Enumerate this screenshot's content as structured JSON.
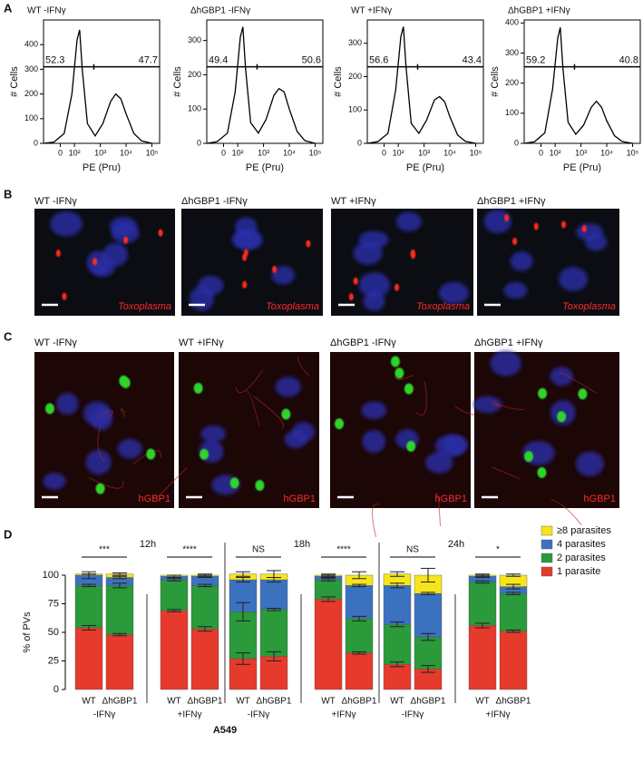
{
  "panel_labels": [
    "A",
    "B",
    "C",
    "D"
  ],
  "chart_data": [
    {
      "type": "line",
      "title": "WT -IFNγ",
      "xlabel": "PE (Pru)",
      "ylabel": "# Cells",
      "color": "#000000",
      "x": [
        0.8,
        1.2,
        1.6,
        1.9,
        2.1,
        2.2,
        2.3,
        2.5,
        2.8,
        3.1,
        3.4,
        3.6,
        3.8,
        4.0,
        4.3,
        4.6,
        5.0
      ],
      "values": [
        0,
        5,
        40,
        200,
        420,
        460,
        300,
        80,
        30,
        80,
        170,
        200,
        180,
        120,
        40,
        10,
        0
      ],
      "xlim": [
        0.8,
        5.3
      ],
      "xticks": [
        {
          "value": 1.45,
          "label": "0"
        },
        {
          "value": 2,
          "label": "10²"
        },
        {
          "value": 3,
          "label": "10³"
        },
        {
          "value": 4,
          "label": "10⁴"
        },
        {
          "value": 5,
          "label": "10⁵"
        }
      ],
      "ylim": [
        0,
        500
      ],
      "yticks": [
        0,
        100,
        200,
        300,
        400
      ],
      "annotations": [
        52.3,
        47.7
      ]
    },
    {
      "type": "line",
      "title": "ΔhGBP1 -IFNγ",
      "xlabel": "PE (Pru)",
      "ylabel": "# Cells",
      "color": "#000000",
      "x": [
        0.8,
        1.2,
        1.6,
        1.9,
        2.1,
        2.2,
        2.3,
        2.5,
        2.8,
        3.1,
        3.4,
        3.6,
        3.8,
        4.0,
        4.3,
        4.6,
        5.0
      ],
      "values": [
        0,
        5,
        30,
        150,
        310,
        340,
        220,
        60,
        30,
        70,
        140,
        160,
        150,
        100,
        35,
        8,
        0
      ],
      "xlim": [
        0.8,
        5.3
      ],
      "xticks": [
        {
          "value": 1.45,
          "label": "0"
        },
        {
          "value": 2,
          "label": "10²"
        },
        {
          "value": 3,
          "label": "10³"
        },
        {
          "value": 4,
          "label": "10⁴"
        },
        {
          "value": 5,
          "label": "10⁵"
        }
      ],
      "ylim": [
        0,
        360
      ],
      "yticks": [
        0,
        100,
        200,
        300
      ],
      "annotations": [
        49.4,
        50.6
      ]
    },
    {
      "type": "line",
      "title": "WT +IFNγ",
      "xlabel": "PE (Pru)",
      "ylabel": "# Cells",
      "color": "#000000",
      "x": [
        0.8,
        1.2,
        1.6,
        1.9,
        2.1,
        2.2,
        2.3,
        2.5,
        2.8,
        3.1,
        3.4,
        3.6,
        3.8,
        4.0,
        4.3,
        4.6,
        5.0
      ],
      "values": [
        0,
        5,
        30,
        160,
        320,
        350,
        230,
        60,
        30,
        70,
        130,
        140,
        125,
        80,
        25,
        6,
        0
      ],
      "xlim": [
        0.8,
        5.3
      ],
      "xticks": [
        {
          "value": 1.45,
          "label": "0"
        },
        {
          "value": 2,
          "label": "10²"
        },
        {
          "value": 3,
          "label": "10³"
        },
        {
          "value": 4,
          "label": "10⁴"
        },
        {
          "value": 5,
          "label": "10⁵"
        }
      ],
      "ylim": [
        0,
        370
      ],
      "yticks": [
        0,
        100,
        200,
        300
      ],
      "annotations": [
        56.6,
        43.4
      ]
    },
    {
      "type": "line",
      "title": "ΔhGBP1 +IFNγ",
      "xlabel": "PE (Pru)",
      "ylabel": "# Cells",
      "color": "#000000",
      "x": [
        0.8,
        1.2,
        1.6,
        1.9,
        2.1,
        2.2,
        2.3,
        2.5,
        2.8,
        3.1,
        3.4,
        3.6,
        3.8,
        4.0,
        4.3,
        4.6,
        5.0
      ],
      "values": [
        0,
        5,
        35,
        180,
        350,
        385,
        250,
        70,
        30,
        60,
        120,
        140,
        120,
        75,
        25,
        6,
        0
      ],
      "xlim": [
        0.8,
        5.3
      ],
      "xticks": [
        {
          "value": 1.45,
          "label": "0"
        },
        {
          "value": 2,
          "label": "10²"
        },
        {
          "value": 3,
          "label": "10³"
        },
        {
          "value": 4,
          "label": "10⁴"
        },
        {
          "value": 5,
          "label": "10⁵"
        }
      ],
      "ylim": [
        0,
        410
      ],
      "yticks": [
        0,
        100,
        200,
        300,
        400
      ],
      "annotations": [
        59.2,
        40.8
      ]
    },
    {
      "type": "stacked-bar",
      "ylabel": "% of PVs",
      "xlabel": "A549",
      "categories": [
        "WT",
        "ΔhGBP1",
        "WT",
        "ΔhGBP1",
        "WT",
        "ΔhGBP1",
        "WT",
        "ΔhGBP1",
        "WT",
        "ΔhGBP1",
        "WT",
        "ΔhGBP1"
      ],
      "groups": [
        "-IFNγ",
        "+IFNγ",
        "-IFNγ",
        "+IFNγ",
        "-IFNγ",
        "+IFNγ"
      ],
      "time_labels": [
        "12h",
        "18h",
        "24h"
      ],
      "significance": [
        "***",
        "****",
        "NS",
        "****",
        "NS",
        "*"
      ],
      "ylim": [
        0,
        110
      ],
      "yticks": [
        0,
        25,
        50,
        75,
        100
      ],
      "series": [
        {
          "name": "1 parasite",
          "color": "#e63a2c",
          "values": [
            54,
            48,
            69,
            53,
            27,
            29,
            79,
            32,
            22,
            18,
            56,
            51
          ],
          "errors": [
            2,
            1,
            1,
            2,
            5,
            4,
            2,
            1,
            2,
            3,
            2,
            1
          ]
        },
        {
          "name": "2 parasites",
          "color": "#2a9a3a",
          "values": [
            37,
            43,
            27,
            38,
            41,
            41,
            17,
            30,
            35,
            28,
            38,
            33
          ],
          "errors": [
            1,
            2,
            1,
            1,
            8,
            1,
            1,
            2,
            2,
            3,
            1,
            1
          ]
        },
        {
          "name": "4 parasites",
          "color": "#3b72c0",
          "values": [
            9,
            7,
            3,
            8,
            28,
            26,
            3,
            29,
            34,
            38,
            5,
            6
          ],
          "errors": [
            3,
            1,
            1,
            1,
            2,
            2,
            1,
            1,
            2,
            1,
            1,
            2
          ]
        },
        {
          "name": "≥8 parasites",
          "color": "#f7e51b",
          "values": [
            1,
            3,
            1,
            1,
            5,
            5,
            1,
            9,
            10,
            16,
            1,
            10
          ],
          "errors": [
            0,
            1,
            0,
            1,
            2,
            3,
            1,
            3,
            2,
            6,
            1,
            1
          ]
        }
      ]
    }
  ],
  "panel_b": {
    "images": [
      {
        "title": "WT -IFNγ",
        "stain": "Toxoplasma"
      },
      {
        "title": "ΔhGBP1 -IFNγ",
        "stain": "Toxoplasma"
      },
      {
        "title": "WT +IFNγ",
        "stain": "Toxoplasma"
      },
      {
        "title": "ΔhGBP1 +IFNγ",
        "stain": "Toxoplasma"
      }
    ]
  },
  "panel_c": {
    "images": [
      {
        "title": "WT -IFNγ",
        "stain": "hGBP1"
      },
      {
        "title": "WT +IFNγ",
        "stain": "hGBP1"
      },
      {
        "title": "ΔhGBP1 -IFNγ",
        "stain": "hGBP1"
      },
      {
        "title": "ΔhGBP1 +IFNγ",
        "stain": "hGBP1"
      }
    ]
  }
}
